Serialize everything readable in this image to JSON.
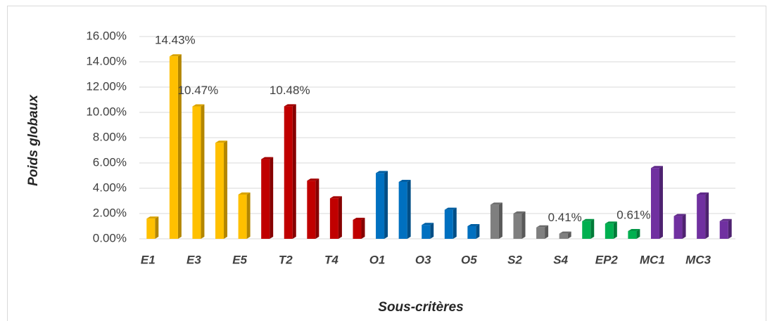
{
  "chart_data": {
    "type": "bar",
    "x_label": "Sous-critères",
    "y_label": "Poids globaux",
    "categories": [
      "E1",
      null,
      "E3",
      null,
      "E5",
      null,
      "T2",
      null,
      "T4",
      null,
      "O1",
      null,
      "O3",
      null,
      "O5",
      null,
      "S2",
      null,
      "S4",
      null,
      "EP2",
      null,
      "MC1",
      null,
      "MC3",
      null
    ],
    "values": [
      1.6,
      14.43,
      10.47,
      7.6,
      3.5,
      6.3,
      10.48,
      4.6,
      3.2,
      1.5,
      5.2,
      4.5,
      1.1,
      2.3,
      1.0,
      2.7,
      2.0,
      0.9,
      0.41,
      1.4,
      1.2,
      0.61,
      5.6,
      1.8,
      3.5,
      1.4
    ],
    "value_labels": [
      null,
      "14.43%",
      "10.47%",
      null,
      null,
      null,
      "10.48%",
      null,
      null,
      null,
      null,
      null,
      null,
      null,
      null,
      null,
      null,
      null,
      "0.41%",
      null,
      null,
      "0.61%",
      null,
      null,
      null,
      null
    ],
    "colors": [
      "#ffc000",
      "#ffc000",
      "#ffc000",
      "#ffc000",
      "#ffc000",
      "#c00000",
      "#c00000",
      "#c00000",
      "#c00000",
      "#c00000",
      "#0070c0",
      "#0070c0",
      "#0070c0",
      "#0070c0",
      "#0070c0",
      "#7f7f7f",
      "#7f7f7f",
      "#7f7f7f",
      "#7f7f7f",
      "#00b050",
      "#00b050",
      "#00b050",
      "#7030a0",
      "#7030a0",
      "#7030a0",
      "#7030a0"
    ],
    "ylim": [
      0,
      16
    ],
    "yticks": [
      {
        "value": 0,
        "label": "0.00%"
      },
      {
        "value": 2,
        "label": "2.00%"
      },
      {
        "value": 4,
        "label": "4.00%"
      },
      {
        "value": 6,
        "label": "6.00%"
      },
      {
        "value": 8,
        "label": "8.00%"
      },
      {
        "value": 10,
        "label": "10.00%"
      },
      {
        "value": 12,
        "label": "12.00%"
      },
      {
        "value": 14,
        "label": "14.00%"
      },
      {
        "value": 16,
        "label": "16.00%"
      }
    ],
    "grid": true
  }
}
